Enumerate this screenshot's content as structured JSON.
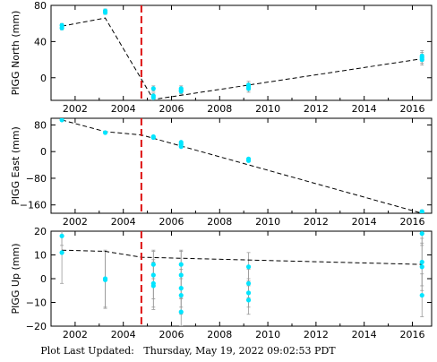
{
  "footer": {
    "label": "Plot Last Updated:",
    "value": "Thursday, May 19, 2022 09:02:53 PDT"
  },
  "style": {
    "point_color": "#00e5ff",
    "errorbar_color": "#999999",
    "event_line_color": "#dd1111",
    "fit_line_color": "#000000"
  },
  "chart_data": [
    {
      "type": "scatter",
      "ylabel": "PIGG North (mm)",
      "xlim": [
        2001.0,
        2016.8
      ],
      "ylim": [
        -25,
        80
      ],
      "xticks": [
        2002,
        2004,
        2006,
        2008,
        2010,
        2012,
        2014,
        2016
      ],
      "yticks": [
        0,
        40,
        80
      ],
      "yticklabels": [
        "0",
        "40",
        "80"
      ],
      "event_x": 2004.75,
      "points": [
        {
          "x": 2001.45,
          "y": 55,
          "err": 2
        },
        {
          "x": 2001.45,
          "y": 58,
          "err": 2
        },
        {
          "x": 2003.25,
          "y": 72,
          "err": 2
        },
        {
          "x": 2003.25,
          "y": 74,
          "err": 2
        },
        {
          "x": 2005.25,
          "y": -12,
          "err": 3
        },
        {
          "x": 2005.25,
          "y": -20,
          "err": 3
        },
        {
          "x": 2005.25,
          "y": -22,
          "err": 3
        },
        {
          "x": 2006.4,
          "y": -12,
          "err": 3
        },
        {
          "x": 2006.4,
          "y": -14,
          "err": 3
        },
        {
          "x": 2006.4,
          "y": -15,
          "err": 3
        },
        {
          "x": 2009.2,
          "y": -8,
          "err": 4
        },
        {
          "x": 2009.2,
          "y": -10,
          "err": 4
        },
        {
          "x": 2009.2,
          "y": -12,
          "err": 4
        },
        {
          "x": 2016.4,
          "y": 20,
          "err": 6
        },
        {
          "x": 2016.4,
          "y": 22,
          "err": 6
        },
        {
          "x": 2016.4,
          "y": 24,
          "err": 6
        }
      ],
      "fit": [
        [
          2001.45,
          57
        ],
        [
          2003.25,
          66
        ],
        [
          2005.25,
          -24
        ],
        [
          2016.4,
          21
        ]
      ]
    },
    {
      "type": "scatter",
      "ylabel": "PIGG East (mm)",
      "xlim": [
        2001.0,
        2016.8
      ],
      "ylim": [
        -185,
        100
      ],
      "xticks": [
        2002,
        2004,
        2006,
        2008,
        2010,
        2012,
        2014,
        2016
      ],
      "yticks": [
        80,
        0,
        -80,
        -160
      ],
      "yticklabels": [
        "80",
        "0",
        "−80",
        "−160"
      ],
      "event_x": 2004.75,
      "points": [
        {
          "x": 2001.45,
          "y": 95,
          "err": 2
        },
        {
          "x": 2003.25,
          "y": 57,
          "err": 2
        },
        {
          "x": 2005.25,
          "y": 45,
          "err": 3
        },
        {
          "x": 2005.25,
          "y": 42,
          "err": 3
        },
        {
          "x": 2006.4,
          "y": 28,
          "err": 3
        },
        {
          "x": 2006.4,
          "y": 22,
          "err": 3
        },
        {
          "x": 2006.4,
          "y": 15,
          "err": 3
        },
        {
          "x": 2009.2,
          "y": -22,
          "err": 3
        },
        {
          "x": 2009.2,
          "y": -27,
          "err": 3
        },
        {
          "x": 2016.4,
          "y": -180,
          "err": 5
        },
        {
          "x": 2016.4,
          "y": -183,
          "err": 5
        }
      ],
      "fit": [
        [
          2001.45,
          95
        ],
        [
          2003.25,
          60
        ],
        [
          2004.75,
          50
        ],
        [
          2016.4,
          -185
        ]
      ]
    },
    {
      "type": "scatter",
      "ylabel": "PIGG Up (mm)",
      "xlim": [
        2001.0,
        2016.8
      ],
      "ylim": [
        -20,
        20
      ],
      "xticks": [
        2002,
        2004,
        2006,
        2008,
        2010,
        2012,
        2014,
        2016
      ],
      "yticks": [
        20,
        10,
        0,
        -10,
        -20
      ],
      "yticklabels": [
        "20",
        "10",
        "0",
        "−10",
        "−20"
      ],
      "event_x": 2004.75,
      "points": [
        {
          "x": 2001.45,
          "y": 18,
          "err": 4
        },
        {
          "x": 2001.45,
          "y": 11,
          "err": 13
        },
        {
          "x": 2003.25,
          "y": 0,
          "err": 12
        },
        {
          "x": 2003.25,
          "y": -0.5,
          "err": 12
        },
        {
          "x": 2005.25,
          "y": 6,
          "err": 6
        },
        {
          "x": 2005.25,
          "y": 1.5,
          "err": 10
        },
        {
          "x": 2005.25,
          "y": -2,
          "err": 10
        },
        {
          "x": 2005.25,
          "y": -3,
          "err": 10
        },
        {
          "x": 2006.4,
          "y": 6,
          "err": 6
        },
        {
          "x": 2006.4,
          "y": 1.5,
          "err": 10
        },
        {
          "x": 2006.4,
          "y": -4,
          "err": 8
        },
        {
          "x": 2006.4,
          "y": -7,
          "err": 8
        },
        {
          "x": 2006.4,
          "y": -14,
          "err": 6
        },
        {
          "x": 2009.2,
          "y": 5,
          "err": 6
        },
        {
          "x": 2009.2,
          "y": -2,
          "err": 6
        },
        {
          "x": 2009.2,
          "y": -6,
          "err": 6
        },
        {
          "x": 2009.2,
          "y": -9,
          "err": 6
        },
        {
          "x": 2016.4,
          "y": 19,
          "err": 5
        },
        {
          "x": 2016.4,
          "y": 7,
          "err": 10
        },
        {
          "x": 2016.4,
          "y": 5,
          "err": 10
        },
        {
          "x": 2016.4,
          "y": -7,
          "err": 9
        }
      ],
      "fit": [
        [
          2001.45,
          12
        ],
        [
          2003.25,
          11.5
        ],
        [
          2004.75,
          9
        ],
        [
          2016.4,
          6
        ]
      ]
    }
  ]
}
